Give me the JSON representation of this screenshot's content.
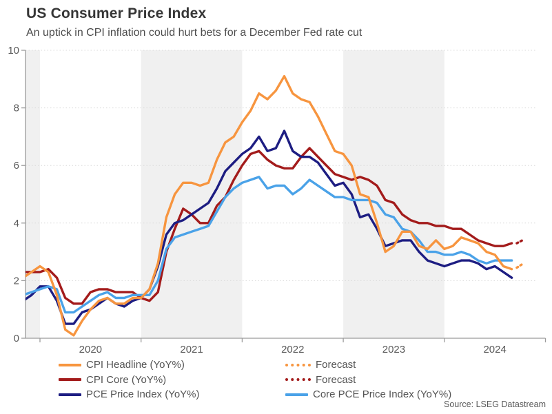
{
  "chart_data": {
    "type": "line",
    "title": "US Consumer Price Index",
    "subtitle": "An uptick in CPI inflation could hurt bets for a December Fed rate cut",
    "source": "Source: LSEG Datastream",
    "ylim": [
      0,
      10
    ],
    "yticks": [
      0,
      2,
      4,
      6,
      8,
      10
    ],
    "x_year_labels": [
      "2020",
      "2021",
      "2022",
      "2023",
      "2024"
    ],
    "freq": "monthly",
    "x_start": "2019-11",
    "x_end": "2024-09",
    "forecast_x": "2024-10",
    "grid": "dotted-horizontal",
    "legend_position": "bottom",
    "colors": {
      "band_gray": "#F0F0F0",
      "grid": "#D9D9D9",
      "axis": "#9B9B9B",
      "tick_text": "#595959"
    },
    "series": [
      {
        "name": "CPI Headline (YoY%)",
        "color": "#F7953F",
        "style": "solid",
        "values": [
          2.1,
          2.3,
          2.5,
          2.3,
          1.5,
          0.3,
          0.1,
          0.6,
          1.0,
          1.3,
          1.4,
          1.2,
          1.2,
          1.4,
          1.4,
          1.7,
          2.6,
          4.2,
          5.0,
          5.4,
          5.4,
          5.3,
          5.4,
          6.2,
          6.8,
          7.0,
          7.5,
          7.9,
          8.5,
          8.3,
          8.6,
          9.1,
          8.5,
          8.3,
          8.2,
          7.7,
          7.1,
          6.5,
          6.4,
          6.0,
          5.0,
          4.9,
          4.0,
          3.0,
          3.2,
          3.7,
          3.7,
          3.2,
          3.1,
          3.4,
          3.1,
          3.2,
          3.5,
          3.4,
          3.3,
          3.0,
          2.9,
          2.5,
          2.4
        ]
      },
      {
        "name": "CPI Core (YoY%)",
        "color": "#A31B1B",
        "style": "solid",
        "values": [
          2.3,
          2.3,
          2.3,
          2.4,
          2.1,
          1.4,
          1.2,
          1.2,
          1.6,
          1.7,
          1.7,
          1.6,
          1.6,
          1.6,
          1.4,
          1.3,
          1.6,
          3.0,
          3.8,
          4.5,
          4.3,
          4.0,
          4.0,
          4.6,
          4.9,
          5.5,
          6.0,
          6.4,
          6.5,
          6.2,
          6.0,
          5.9,
          5.9,
          6.3,
          6.6,
          6.3,
          6.0,
          5.7,
          5.6,
          5.5,
          5.6,
          5.5,
          5.3,
          4.8,
          4.7,
          4.3,
          4.1,
          4.0,
          4.0,
          3.9,
          3.9,
          3.8,
          3.8,
          3.6,
          3.4,
          3.3,
          3.2,
          3.2,
          3.3
        ]
      },
      {
        "name": "PCE Price Index (YoY%)",
        "color": "#1D1D82",
        "style": "solid",
        "values": [
          1.3,
          1.5,
          1.8,
          1.8,
          1.3,
          0.5,
          0.5,
          0.9,
          1.0,
          1.2,
          1.4,
          1.2,
          1.1,
          1.3,
          1.4,
          1.7,
          2.5,
          3.6,
          4.0,
          4.1,
          4.3,
          4.5,
          4.7,
          5.2,
          5.8,
          6.1,
          6.4,
          6.6,
          7.0,
          6.5,
          6.6,
          7.2,
          6.5,
          6.3,
          6.3,
          6.1,
          5.7,
          5.3,
          5.4,
          5.0,
          4.2,
          4.3,
          3.8,
          3.2,
          3.3,
          3.4,
          3.4,
          3.0,
          2.7,
          2.6,
          2.5,
          2.6,
          2.7,
          2.7,
          2.6,
          2.4,
          2.5,
          2.3,
          2.1
        ]
      },
      {
        "name": "Core PCE Price Index (YoY%)",
        "color": "#4AA2E8",
        "style": "solid",
        "values": [
          1.5,
          1.6,
          1.7,
          1.8,
          1.7,
          0.9,
          0.9,
          1.1,
          1.3,
          1.5,
          1.6,
          1.4,
          1.4,
          1.5,
          1.5,
          1.5,
          2.0,
          3.1,
          3.5,
          3.6,
          3.7,
          3.8,
          3.9,
          4.4,
          4.9,
          5.2,
          5.4,
          5.5,
          5.6,
          5.2,
          5.3,
          5.3,
          5.0,
          5.2,
          5.5,
          5.3,
          5.1,
          4.9,
          4.9,
          4.8,
          4.8,
          4.8,
          4.7,
          4.3,
          4.2,
          3.8,
          3.7,
          3.4,
          3.0,
          3.0,
          2.9,
          2.9,
          3.0,
          2.9,
          2.7,
          2.6,
          2.7,
          2.7,
          2.7
        ]
      },
      {
        "name": "Forecast",
        "for": "CPI Headline (YoY%)",
        "color": "#F7953F",
        "style": "dotted",
        "values_at": [
          58.6,
          59.4
        ],
        "values": [
          2.45,
          2.6
        ]
      },
      {
        "name": "Forecast",
        "for": "CPI Core (YoY%)",
        "color": "#A31B1B",
        "style": "dotted",
        "values_at": [
          58.6,
          59.4
        ],
        "values": [
          3.3,
          3.42
        ]
      }
    ]
  }
}
